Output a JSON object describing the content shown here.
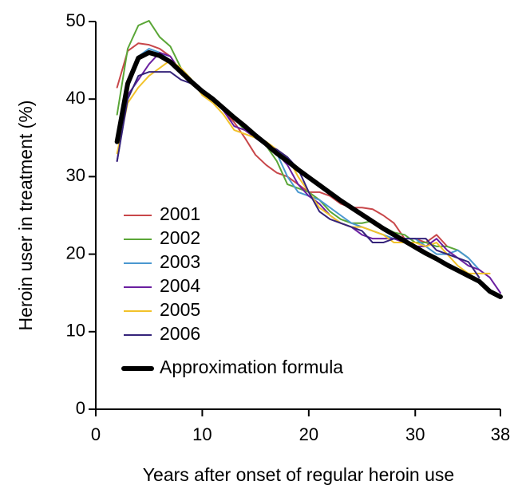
{
  "chart_data": {
    "type": "line",
    "x_label": "Years after onset of regular heroin use",
    "y_label": "Heroin user in treatment (%)",
    "x": [
      2,
      3,
      4,
      5,
      6,
      7,
      8,
      9,
      10,
      11,
      12,
      13,
      14,
      15,
      16,
      17,
      18,
      19,
      20,
      21,
      22,
      23,
      24,
      25,
      26,
      27,
      28,
      29,
      30,
      31,
      32,
      33,
      34,
      35,
      36,
      37,
      38
    ],
    "xlim": [
      0,
      38
    ],
    "ylim": [
      0,
      50
    ],
    "xticks": [
      0,
      10,
      20,
      30,
      38
    ],
    "yticks": [
      0,
      10,
      20,
      30,
      40,
      50
    ],
    "grid": false,
    "legend": "left",
    "series": [
      {
        "name": "2001",
        "color": "#c8474a",
        "width": 2,
        "values": [
          41.5,
          46.2,
          47.2,
          47,
          46.5,
          45.5,
          43.5,
          42,
          41,
          40,
          38.5,
          37,
          35,
          32.8,
          31.5,
          30.5,
          30,
          29,
          28,
          28,
          27.5,
          26.5,
          26,
          26,
          25.8,
          25,
          24,
          22,
          22,
          21.5,
          22.5,
          21,
          null,
          null,
          null,
          null,
          null
        ]
      },
      {
        "name": "2002",
        "color": "#5aa637",
        "width": 2,
        "values": [
          38,
          46.5,
          49.5,
          50.1,
          48,
          46.8,
          44,
          42.5,
          41,
          40,
          39,
          37.5,
          36,
          35,
          34,
          32,
          29,
          28.5,
          28,
          27,
          25.5,
          24.5,
          24,
          24,
          24.3,
          23.5,
          22.8,
          22.5,
          21.5,
          21.5,
          21,
          21,
          20.5,
          19.5,
          null,
          null,
          null
        ]
      },
      {
        "name": "2003",
        "color": "#4a98d0",
        "width": 2,
        "values": [
          34.5,
          42.5,
          45.5,
          46.5,
          46,
          45,
          43.5,
          42,
          41,
          40,
          38.5,
          37.5,
          36.5,
          35.5,
          34,
          33,
          30,
          28,
          27.5,
          27,
          26,
          25,
          24,
          23.5,
          23,
          22.5,
          22,
          22,
          22,
          21,
          20,
          20,
          20.5,
          19.5,
          18,
          null,
          null
        ]
      },
      {
        "name": "2004",
        "color": "#6a1fa0",
        "width": 2,
        "values": [
          32,
          40.5,
          42.5,
          44.5,
          46,
          45.5,
          43.5,
          42,
          41,
          40,
          38.5,
          36.5,
          36,
          35,
          34,
          33,
          31.5,
          29,
          27.5,
          26.5,
          25,
          24,
          23.5,
          22.5,
          22,
          22,
          22,
          21.5,
          21,
          21,
          22,
          20.5,
          19.5,
          18.5,
          18,
          17,
          15
        ]
      },
      {
        "name": "2005",
        "color": "#f2c22a",
        "width": 2,
        "values": [
          33,
          39.5,
          41.5,
          43,
          44,
          45,
          44,
          42.5,
          40.5,
          39.5,
          38,
          36,
          35.5,
          35,
          34.5,
          33.5,
          32.5,
          30,
          28,
          26,
          25,
          24,
          23.5,
          23.5,
          23,
          22.5,
          21.5,
          21.5,
          21.5,
          21,
          21.5,
          20,
          18.5,
          17.5,
          17.5,
          17.5,
          null
        ]
      },
      {
        "name": "2006",
        "color": "#35237a",
        "width": 2,
        "values": [
          32,
          40,
          43,
          43.5,
          43.5,
          43.5,
          42.5,
          42,
          41,
          40,
          39,
          37.5,
          36.5,
          35,
          34,
          33.5,
          32.5,
          31,
          28,
          25.5,
          24.5,
          24,
          23.5,
          23,
          21.5,
          21.5,
          22,
          22,
          22,
          22,
          20.5,
          20,
          19.5,
          19,
          17,
          null,
          null
        ]
      },
      {
        "name": "Approximation formula",
        "color": "#000000",
        "width": 6,
        "values": [
          34.5,
          42,
          45.3,
          46,
          45.6,
          44.8,
          43.5,
          42.2,
          41,
          40,
          38.8,
          37.6,
          36.5,
          35.3,
          34.2,
          33,
          32,
          30.9,
          29.9,
          28.9,
          27.9,
          26.9,
          26,
          25.1,
          24.2,
          23.3,
          22.5,
          21.7,
          20.9,
          20.1,
          19.4,
          18.6,
          17.9,
          17.2,
          16.5,
          15.2,
          14.5
        ]
      }
    ]
  }
}
